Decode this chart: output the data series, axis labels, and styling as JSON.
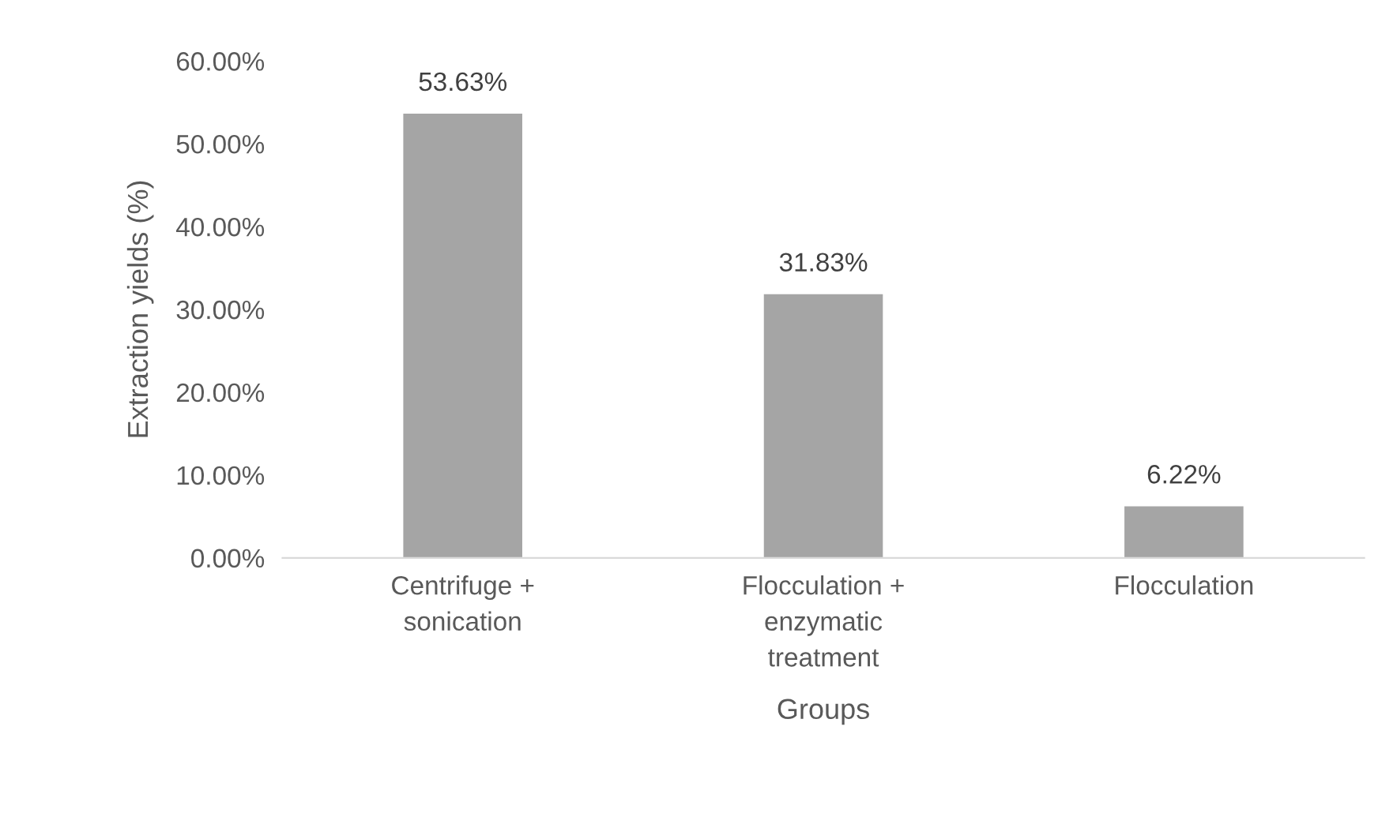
{
  "chart_data": {
    "type": "bar",
    "xlabel": "Groups",
    "ylabel": "Extraction yields (%)",
    "categories": [
      "Centrifuge +\nsonication",
      "Flocculation +\nenzymatic\ntreatment",
      "Flocculation"
    ],
    "values": [
      53.63,
      31.83,
      6.22
    ],
    "color": "#a5a5a5",
    "value_labels": [
      "53.63%",
      "31.83%",
      "6.22%"
    ],
    "ylim": [
      0,
      60
    ],
    "yticks": [
      {
        "value": 0,
        "label": "0.00%"
      },
      {
        "value": 10,
        "label": "10.00%"
      },
      {
        "value": 20,
        "label": "20.00%"
      },
      {
        "value": 30,
        "label": "30.00%"
      },
      {
        "value": 40,
        "label": "40.00%"
      },
      {
        "value": 50,
        "label": "50.00%"
      },
      {
        "value": 60,
        "label": "60.00%"
      }
    ],
    "grid": false,
    "legend": false
  }
}
